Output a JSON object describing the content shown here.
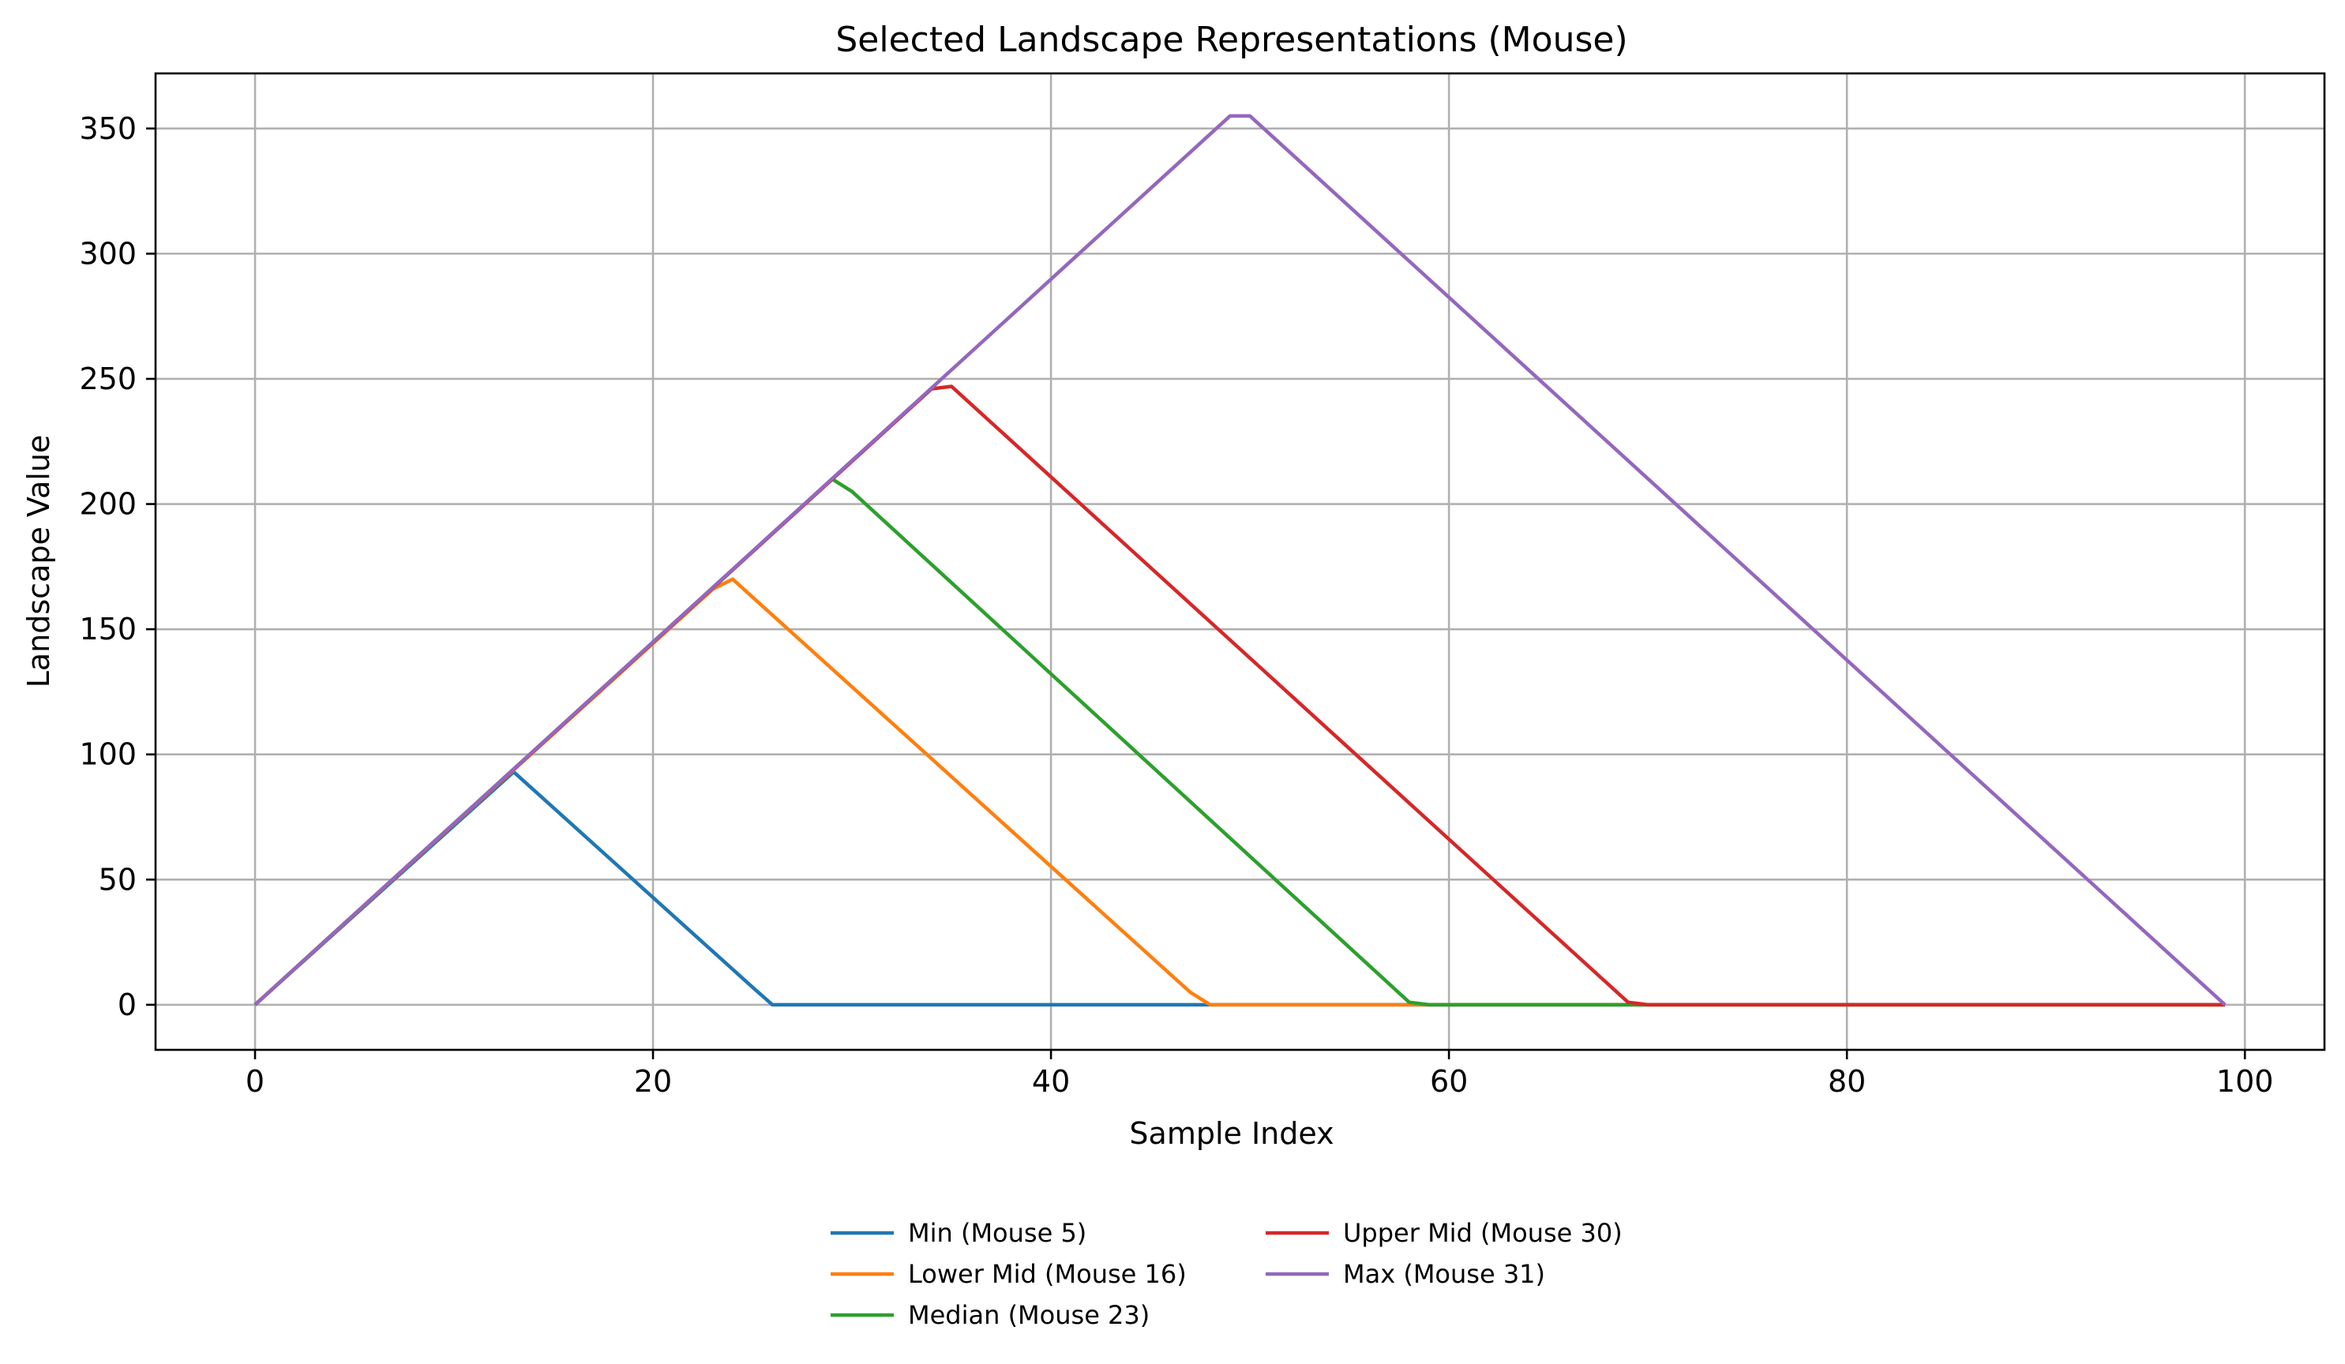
{
  "chart_data": {
    "type": "line",
    "title": "Selected Landscape Representations (Mouse)",
    "xlabel": "Sample Index",
    "ylabel": "Landscape Value",
    "xlim": [
      -5,
      104
    ],
    "ylim": [
      -18,
      372
    ],
    "xticks": [
      0,
      20,
      40,
      60,
      80,
      100
    ],
    "yticks": [
      0,
      50,
      100,
      150,
      200,
      250,
      300,
      350
    ],
    "grid": true,
    "legend_position": "bottom-center",
    "series": [
      {
        "name": "Min (Mouse 5)",
        "color": "#1f77b4",
        "points": [
          [
            0,
            0
          ],
          [
            13,
            93
          ],
          [
            25,
            7
          ],
          [
            26,
            0
          ],
          [
            99,
            0
          ]
        ]
      },
      {
        "name": "Lower Mid (Mouse 16)",
        "color": "#ff7f0e",
        "points": [
          [
            0,
            0
          ],
          [
            23,
            166
          ],
          [
            24,
            170
          ],
          [
            47,
            5
          ],
          [
            48,
            0
          ],
          [
            99,
            0
          ]
        ]
      },
      {
        "name": "Median (Mouse 23)",
        "color": "#2ca02c",
        "points": [
          [
            0,
            0
          ],
          [
            29,
            210
          ],
          [
            30,
            205
          ],
          [
            58,
            1
          ],
          [
            59,
            0
          ],
          [
            99,
            0
          ]
        ]
      },
      {
        "name": "Upper Mid (Mouse 30)",
        "color": "#d62728",
        "points": [
          [
            0,
            0
          ],
          [
            34,
            246
          ],
          [
            35,
            247
          ],
          [
            69,
            1
          ],
          [
            70,
            0
          ],
          [
            99,
            0
          ]
        ]
      },
      {
        "name": "Max (Mouse 31)",
        "color": "#9467bd",
        "points": [
          [
            0,
            0
          ],
          [
            49,
            355
          ],
          [
            50,
            355
          ],
          [
            99,
            0
          ]
        ]
      }
    ]
  }
}
